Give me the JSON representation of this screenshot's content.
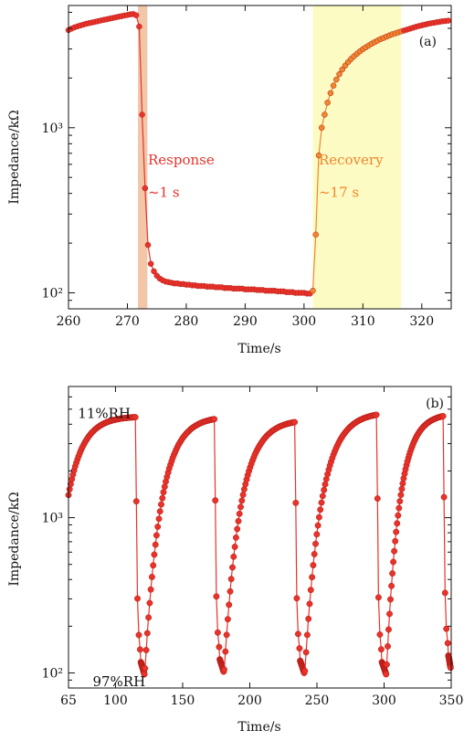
{
  "chart_data": [
    {
      "type": "line",
      "panel_label": "(a)",
      "xlabel": "Time/s",
      "ylabel": "Impedance/kΩ",
      "xlim": [
        260,
        325
      ],
      "ylim": [
        80,
        5500
      ],
      "yscale": "log",
      "xticks": [
        260,
        270,
        280,
        290,
        300,
        310,
        320
      ],
      "yticks": [
        {
          "value": 100,
          "label": "10²"
        },
        {
          "value": 1000,
          "label": "10³"
        }
      ],
      "annotations": [
        {
          "text": "Response",
          "x": 273.5,
          "y": 600,
          "color": "#e8322a"
        },
        {
          "text": "~1 s",
          "x": 273.5,
          "y": 380,
          "color": "#e8322a"
        },
        {
          "text": "Recovery",
          "x": 302.5,
          "y": 600,
          "color": "#f0862d"
        },
        {
          "text": "~17 s",
          "x": 302.5,
          "y": 380,
          "color": "#f0862d"
        }
      ],
      "shaded_regions": [
        {
          "x0": 271.8,
          "x1": 273.4,
          "color": "#f2c7a9"
        },
        {
          "x0": 301.5,
          "x1": 316.5,
          "color": "#fdfbc4"
        }
      ],
      "series": [
        {
          "color": "#e8322a",
          "x": [
            260.0,
            260.5,
            261.0,
            261.5,
            262.0,
            262.5,
            263.0,
            263.5,
            264.0,
            264.5,
            265.0,
            265.5,
            266.0,
            266.5,
            267.0,
            267.5,
            268.0,
            268.5,
            269.0,
            269.5,
            270.0,
            270.5,
            271.0,
            271.5,
            272.0,
            272.5,
            273.0,
            273.5,
            274.0,
            274.5,
            275.0,
            275.5,
            276.0,
            276.5,
            277.0,
            277.5,
            278.0,
            278.5,
            279.0,
            279.5,
            280.0,
            280.5,
            281.0,
            281.5,
            282.0,
            282.5,
            283.0,
            283.5,
            284.0,
            284.5,
            285.0,
            285.5,
            286.0,
            286.5,
            287.0,
            287.5,
            288.0,
            288.5,
            289.0,
            289.5,
            290.0,
            290.5,
            291.0,
            291.5,
            292.0,
            292.5,
            293.0,
            293.5,
            294.0,
            294.5,
            295.0,
            295.5,
            296.0,
            296.5,
            297.0,
            297.5,
            298.0,
            298.5,
            299.0,
            299.5,
            300.0,
            300.5,
            301.0
          ],
          "y": [
            3900,
            3980,
            4050,
            4110,
            4160,
            4210,
            4260,
            4300,
            4340,
            4380,
            4420,
            4460,
            4500,
            4540,
            4580,
            4620,
            4660,
            4700,
            4740,
            4780,
            4820,
            4860,
            4880,
            4800,
            4100,
            1200,
            430,
            195,
            150,
            135,
            127,
            122,
            119,
            117,
            116,
            115,
            114,
            114,
            113,
            113,
            112,
            112,
            111,
            111,
            110,
            110,
            110,
            109,
            109,
            109,
            108,
            108,
            108,
            107,
            107,
            107,
            106,
            106,
            106,
            106,
            105,
            105,
            105,
            105,
            104,
            104,
            104,
            103,
            103,
            103,
            103,
            102,
            102,
            102,
            101,
            101,
            101,
            100,
            100,
            100,
            100,
            99,
            99
          ]
        },
        {
          "color": "#f0862d",
          "x": [
            301.5,
            302.0,
            302.5,
            303.0,
            303.5,
            304.0,
            304.5,
            305.0,
            305.5,
            306.0,
            306.5,
            307.0,
            307.5,
            308.0,
            308.5,
            309.0,
            309.5,
            310.0,
            310.5,
            311.0,
            311.5,
            312.0,
            312.5,
            313.0,
            313.5,
            314.0,
            314.5,
            315.0,
            315.5,
            316.0,
            316.5
          ],
          "y": [
            103,
            225,
            680,
            1000,
            1200,
            1420,
            1620,
            1800,
            1960,
            2110,
            2250,
            2380,
            2500,
            2610,
            2710,
            2810,
            2900,
            2990,
            3070,
            3150,
            3230,
            3300,
            3370,
            3440,
            3500,
            3560,
            3620,
            3680,
            3730,
            3780,
            3830
          ]
        },
        {
          "color": "#e8322a",
          "x": [
            317.0,
            317.5,
            318.0,
            318.5,
            319.0,
            319.5,
            320.0,
            320.5,
            321.0,
            321.5,
            322.0,
            322.5,
            323.0,
            323.5,
            324.0,
            324.5
          ],
          "y": [
            3880,
            3930,
            3980,
            4030,
            4080,
            4130,
            4170,
            4210,
            4250,
            4290,
            4320,
            4350,
            4380,
            4410,
            4430,
            4450
          ]
        }
      ]
    },
    {
      "type": "line",
      "panel_label": "(b)",
      "xlabel": "Time/s",
      "ylabel": "Impedance/kΩ",
      "xlim": [
        65,
        350
      ],
      "ylim": [
        80,
        7000
      ],
      "yscale": "log",
      "xticks": [
        65,
        100,
        150,
        200,
        250,
        300,
        350
      ],
      "yticks": [
        {
          "value": 100,
          "label": "10²"
        },
        {
          "value": 1000,
          "label": "10³"
        }
      ],
      "annotations": [
        {
          "text": "11%RH",
          "x": 72,
          "y": 4400,
          "color": "#111111"
        },
        {
          "text": "97%RH",
          "x": 83,
          "y": 82,
          "color": "#111111"
        }
      ],
      "cycles": [
        {
          "start": 65,
          "end": 122,
          "top": 4500,
          "bottom": 98
        },
        {
          "start": 122,
          "end": 181,
          "top": 4500,
          "bottom": 102
        },
        {
          "start": 181,
          "end": 241,
          "top": 4300,
          "bottom": 100
        },
        {
          "start": 241,
          "end": 302,
          "top": 4800,
          "bottom": 98
        },
        {
          "start": 302,
          "end": 350,
          "top": 4700,
          "bottom": 108
        }
      ],
      "series_color": "#e8322a"
    }
  ]
}
